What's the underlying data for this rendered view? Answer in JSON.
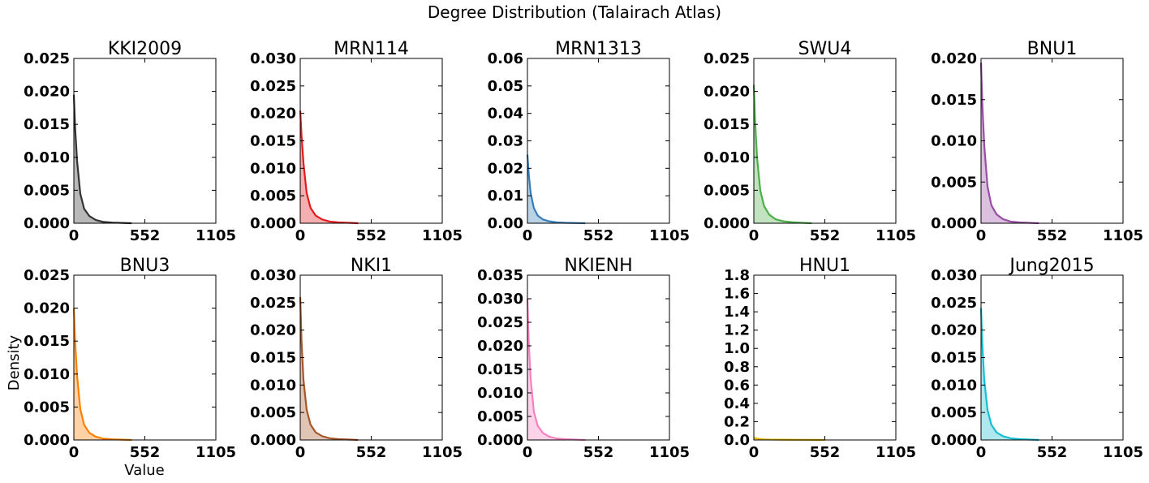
{
  "figure": {
    "title": "Degree Distribution (Talairach Atlas)",
    "xlabel": "Value",
    "ylabel": "Density"
  },
  "chart_data": [
    {
      "type": "area",
      "title": "KKI2009",
      "color": "#333333",
      "xlim": [
        0,
        1105
      ],
      "x_ticks": [
        "0",
        "552",
        "1105"
      ],
      "ylim": [
        0,
        0.025
      ],
      "y_ticks": [
        "0.000",
        "0.005",
        "0.010",
        "0.015",
        "0.020",
        "0.025"
      ],
      "x": [
        0,
        10,
        25,
        50,
        80,
        120,
        170,
        230,
        300,
        400,
        450
      ],
      "y": [
        0.0195,
        0.0145,
        0.0095,
        0.0045,
        0.0022,
        0.0011,
        0.0005,
        0.0002,
        0.0001,
        3e-05,
        0
      ]
    },
    {
      "type": "area",
      "title": "MRN114",
      "color": "#e41a1c",
      "xlim": [
        0,
        1105
      ],
      "x_ticks": [
        "0",
        "552",
        "1105"
      ],
      "ylim": [
        0,
        0.03
      ],
      "y_ticks": [
        "0.000",
        "0.005",
        "0.010",
        "0.015",
        "0.020",
        "0.025",
        "0.030"
      ],
      "x": [
        0,
        10,
        25,
        50,
        80,
        120,
        170,
        230,
        300,
        400,
        450
      ],
      "y": [
        0.0205,
        0.016,
        0.011,
        0.0055,
        0.0028,
        0.0014,
        0.0007,
        0.0003,
        0.00015,
        5e-05,
        0
      ]
    },
    {
      "type": "area",
      "title": "MRN1313",
      "color": "#377eb8",
      "xlim": [
        0,
        1105
      ],
      "x_ticks": [
        "0",
        "552",
        "1105"
      ],
      "ylim": [
        0,
        0.06
      ],
      "y_ticks": [
        "0.00",
        "0.01",
        "0.02",
        "0.03",
        "0.04",
        "0.05",
        "0.06"
      ],
      "x": [
        0,
        10,
        25,
        50,
        80,
        120,
        170,
        230,
        300,
        400,
        450
      ],
      "y": [
        0.025,
        0.018,
        0.011,
        0.0055,
        0.0028,
        0.0014,
        0.0007,
        0.0003,
        0.00015,
        5e-05,
        0
      ]
    },
    {
      "type": "area",
      "title": "SWU4",
      "color": "#4daf4a",
      "xlim": [
        0,
        1105
      ],
      "x_ticks": [
        "0",
        "552",
        "1105"
      ],
      "ylim": [
        0,
        0.025
      ],
      "y_ticks": [
        "0.000",
        "0.005",
        "0.010",
        "0.015",
        "0.020",
        "0.025"
      ],
      "x": [
        0,
        10,
        25,
        50,
        80,
        120,
        170,
        230,
        300,
        400,
        450
      ],
      "y": [
        0.021,
        0.0155,
        0.01,
        0.005,
        0.0026,
        0.0013,
        0.0006,
        0.0003,
        0.00015,
        5e-05,
        0
      ]
    },
    {
      "type": "area",
      "title": "BNU1",
      "color": "#984ea3",
      "xlim": [
        0,
        1105
      ],
      "x_ticks": [
        "0",
        "552",
        "1105"
      ],
      "ylim": [
        0,
        0.02
      ],
      "y_ticks": [
        "0.000",
        "0.005",
        "0.010",
        "0.015",
        "0.020"
      ],
      "x": [
        0,
        10,
        25,
        50,
        80,
        120,
        170,
        230,
        300,
        400,
        450
      ],
      "y": [
        0.0195,
        0.0145,
        0.0095,
        0.0045,
        0.0022,
        0.0011,
        0.0005,
        0.0002,
        0.0001,
        3e-05,
        0
      ]
    },
    {
      "type": "area",
      "title": "BNU3",
      "color": "#ff7f00",
      "xlim": [
        0,
        1105
      ],
      "x_ticks": [
        "0",
        "552",
        "1105"
      ],
      "ylim": [
        0,
        0.025
      ],
      "y_ticks": [
        "0.000",
        "0.005",
        "0.010",
        "0.015",
        "0.020",
        "0.025"
      ],
      "x": [
        0,
        10,
        25,
        50,
        80,
        120,
        170,
        230,
        300,
        400,
        450
      ],
      "y": [
        0.02,
        0.015,
        0.0098,
        0.0047,
        0.0023,
        0.0011,
        0.0005,
        0.0002,
        0.0001,
        3e-05,
        0
      ]
    },
    {
      "type": "area",
      "title": "NKI1",
      "color": "#a65628",
      "xlim": [
        0,
        1105
      ],
      "x_ticks": [
        "0",
        "552",
        "1105"
      ],
      "ylim": [
        0,
        0.03
      ],
      "y_ticks": [
        "0.000",
        "0.005",
        "0.010",
        "0.015",
        "0.020",
        "0.025",
        "0.030"
      ],
      "x": [
        0,
        10,
        25,
        50,
        80,
        120,
        170,
        230,
        300,
        400,
        450
      ],
      "y": [
        0.026,
        0.018,
        0.011,
        0.0055,
        0.0028,
        0.0014,
        0.0007,
        0.0003,
        0.00015,
        5e-05,
        0
      ]
    },
    {
      "type": "area",
      "title": "NKIENH",
      "color": "#f781bf",
      "xlim": [
        0,
        1105
      ],
      "x_ticks": [
        "0",
        "552",
        "1105"
      ],
      "ylim": [
        0,
        0.035
      ],
      "y_ticks": [
        "0.000",
        "0.005",
        "0.010",
        "0.015",
        "0.020",
        "0.025",
        "0.030",
        "0.035"
      ],
      "x": [
        0,
        10,
        25,
        50,
        80,
        120,
        170,
        230,
        300,
        400,
        450
      ],
      "y": [
        0.03,
        0.021,
        0.013,
        0.006,
        0.003,
        0.0015,
        0.0007,
        0.0003,
        0.00015,
        5e-05,
        0
      ]
    },
    {
      "type": "area",
      "title": "HNU1",
      "color": "#e6b800",
      "xlim": [
        0,
        1105
      ],
      "x_ticks": [
        "0",
        "552",
        "1105"
      ],
      "ylim": [
        0,
        1.8
      ],
      "y_ticks": [
        "0.0",
        "0.2",
        "0.4",
        "0.6",
        "0.8",
        "1.0",
        "1.2",
        "1.4",
        "1.6",
        "1.8"
      ],
      "x": [
        0,
        10,
        25,
        50,
        80,
        120,
        170,
        230,
        300,
        400,
        450,
        552
      ],
      "y": [
        0.025,
        0.02,
        0.015,
        0.01,
        0.007,
        0.005,
        0.004,
        0.003,
        0.002,
        0.0015,
        0.001,
        0
      ]
    },
    {
      "type": "area",
      "title": "Jung2015",
      "color": "#17becf",
      "xlim": [
        0,
        1105
      ],
      "x_ticks": [
        "0",
        "552",
        "1105"
      ],
      "ylim": [
        0,
        0.03
      ],
      "y_ticks": [
        "0.000",
        "0.005",
        "0.010",
        "0.015",
        "0.020",
        "0.025",
        "0.030"
      ],
      "x": [
        0,
        10,
        25,
        50,
        80,
        120,
        170,
        230,
        300,
        400,
        450
      ],
      "y": [
        0.024,
        0.0175,
        0.011,
        0.0055,
        0.0028,
        0.0014,
        0.0007,
        0.0003,
        0.00015,
        5e-05,
        0
      ]
    }
  ]
}
